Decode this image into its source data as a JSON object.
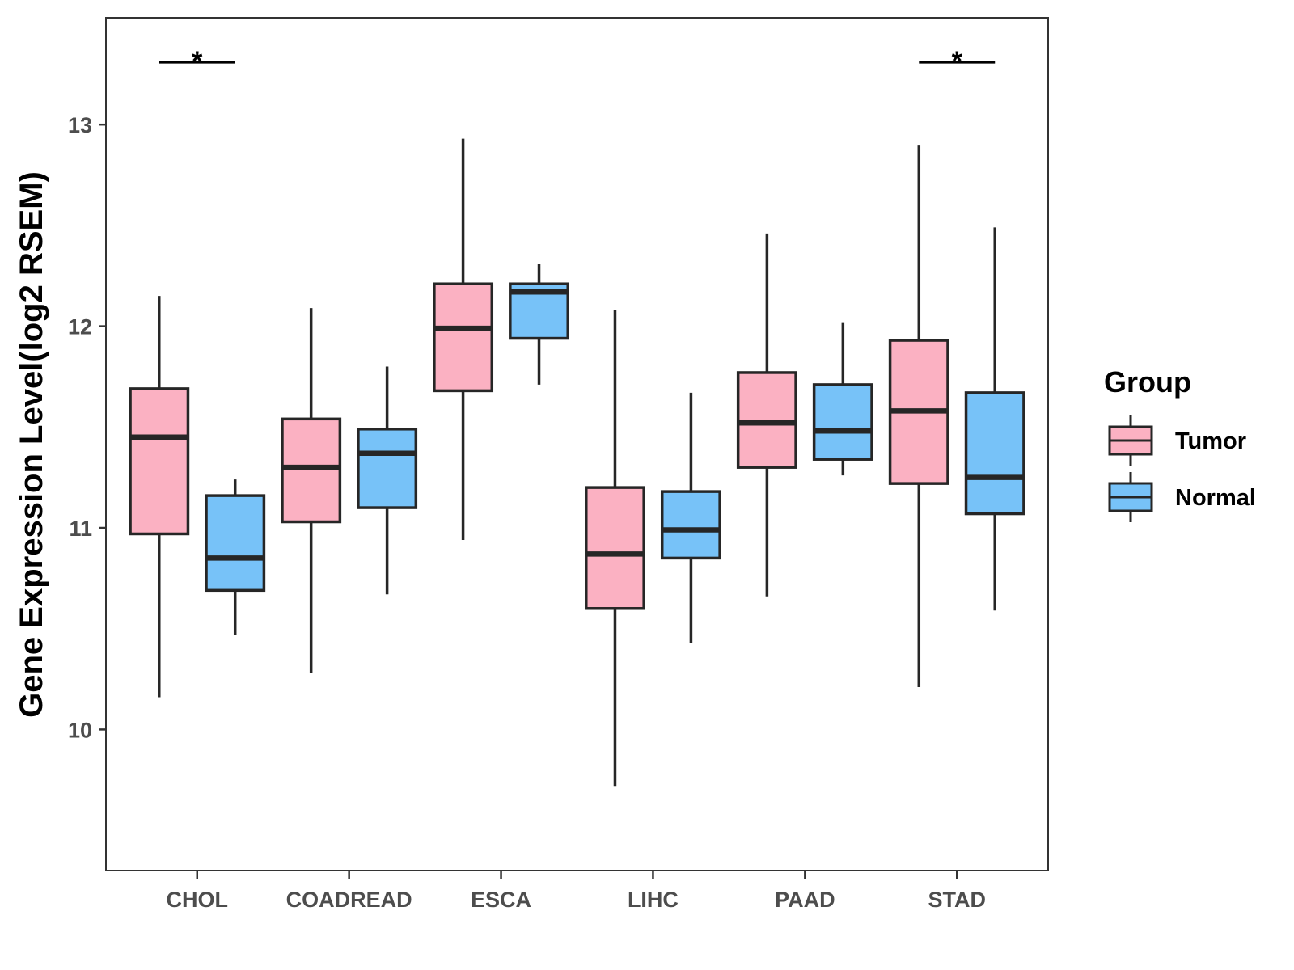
{
  "chart_data": {
    "type": "boxplot",
    "ylabel": "Gene Expression Level(log2 RSEM)",
    "xlabel": "",
    "ylim": [
      9.3,
      13.53
    ],
    "yticks": [
      10,
      11,
      12,
      13
    ],
    "ytick_labels": [
      "10",
      "11",
      "12",
      "13"
    ],
    "grid": false,
    "categories": [
      "CHOL",
      "COADREAD",
      "ESCA",
      "LIHC",
      "PAAD",
      "STAD"
    ],
    "legend": {
      "title": "Group",
      "position": "right",
      "entries": [
        {
          "name": "Tumor",
          "color": "#FBB1C2"
        },
        {
          "name": "Normal",
          "color": "#77C2F8"
        }
      ]
    },
    "series": [
      {
        "name": "Tumor",
        "color": "#FBB1C2",
        "boxes": [
          {
            "min": 10.16,
            "q1": 10.97,
            "median": 11.45,
            "q3": 11.69,
            "max": 12.15
          },
          {
            "min": 10.28,
            "q1": 11.03,
            "median": 11.3,
            "q3": 11.54,
            "max": 12.09
          },
          {
            "min": 10.94,
            "q1": 11.68,
            "median": 11.99,
            "q3": 12.21,
            "max": 12.93
          },
          {
            "min": 9.72,
            "q1": 10.6,
            "median": 10.87,
            "q3": 11.2,
            "max": 12.08
          },
          {
            "min": 10.66,
            "q1": 11.3,
            "median": 11.52,
            "q3": 11.77,
            "max": 12.46
          },
          {
            "min": 10.21,
            "q1": 11.22,
            "median": 11.58,
            "q3": 11.93,
            "max": 12.9
          }
        ]
      },
      {
        "name": "Normal",
        "color": "#77C2F8",
        "boxes": [
          {
            "min": 10.47,
            "q1": 10.69,
            "median": 10.85,
            "q3": 11.16,
            "max": 11.24
          },
          {
            "min": 10.67,
            "q1": 11.1,
            "median": 11.37,
            "q3": 11.49,
            "max": 11.8
          },
          {
            "min": 11.71,
            "q1": 11.94,
            "median": 12.17,
            "q3": 12.21,
            "max": 12.31
          },
          {
            "min": 10.43,
            "q1": 10.85,
            "median": 10.99,
            "q3": 11.18,
            "max": 11.67
          },
          {
            "min": 11.26,
            "q1": 11.34,
            "median": 11.48,
            "q3": 11.71,
            "max": 12.02
          },
          {
            "min": 10.59,
            "q1": 11.07,
            "median": 11.25,
            "q3": 11.67,
            "max": 12.49
          }
        ]
      }
    ],
    "annotations": [
      {
        "category": "CHOL",
        "text": "*",
        "y": 13.31
      },
      {
        "category": "STAD",
        "text": "*",
        "y": 13.31
      }
    ]
  }
}
